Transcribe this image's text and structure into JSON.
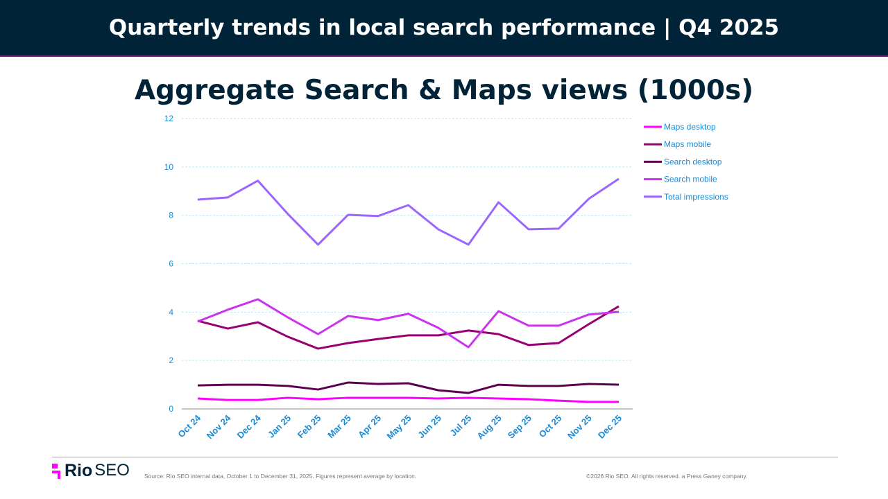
{
  "header": {
    "title": "Quarterly trends in local search performance  |  Q4 2025"
  },
  "footer": {
    "logo": "Rio SEO",
    "logo_rio": "Rio",
    "logo_seo": "SEO",
    "source": "Source: Rio SEO internal data, October 1 to December 31, 2025. Figures represent average by location.",
    "copyright": "©2026 Rio SEO. All rights reserved. a Press Ganey company."
  },
  "chart_data": {
    "type": "line",
    "title": "Aggregate Search & Maps views (1000s)",
    "categories": [
      "Oct 24",
      "Nov 24",
      "Dec 24",
      "Jan 25",
      "Feb 25",
      "Mar 25",
      "Apr 25",
      "May 25",
      "Jun 25",
      "Jul 25",
      "Aug 25",
      "Sep 25",
      "Oct 25",
      "Nov 25",
      "Dec 25"
    ],
    "ylim": [
      0,
      12
    ],
    "yticks": [
      0,
      2,
      4,
      6,
      8,
      10,
      12
    ],
    "grid": true,
    "legend": "right",
    "series": [
      {
        "name": "Maps desktop",
        "color": "#ff00ff",
        "values": [
          0.43,
          0.37,
          0.37,
          0.46,
          0.4,
          0.46,
          0.46,
          0.46,
          0.43,
          0.46,
          0.43,
          0.4,
          0.34,
          0.29,
          0.29
        ]
      },
      {
        "name": "Maps mobile",
        "color": "#990073",
        "values": [
          3.64,
          3.32,
          3.58,
          2.98,
          2.49,
          2.72,
          2.89,
          3.04,
          3.04,
          3.24,
          3.09,
          2.64,
          2.72,
          3.5,
          4.24
        ]
      },
      {
        "name": "Search desktop",
        "color": "#5c0050",
        "values": [
          0.97,
          1.0,
          1.0,
          0.95,
          0.8,
          1.09,
          1.03,
          1.06,
          0.77,
          0.66,
          1.0,
          0.95,
          0.95,
          1.03,
          1.0
        ]
      },
      {
        "name": "Search mobile",
        "color": "#cc33ee",
        "values": [
          3.61,
          4.1,
          4.53,
          3.78,
          3.09,
          3.84,
          3.67,
          3.93,
          3.35,
          2.55,
          4.04,
          3.44,
          3.44,
          3.9,
          4.01
        ]
      },
      {
        "name": "Total impressions",
        "color": "#9966ff",
        "values": [
          8.65,
          8.74,
          9.43,
          8.05,
          6.79,
          8.02,
          7.97,
          8.42,
          7.42,
          6.79,
          8.54,
          7.42,
          7.45,
          8.68,
          9.51
        ]
      }
    ]
  }
}
